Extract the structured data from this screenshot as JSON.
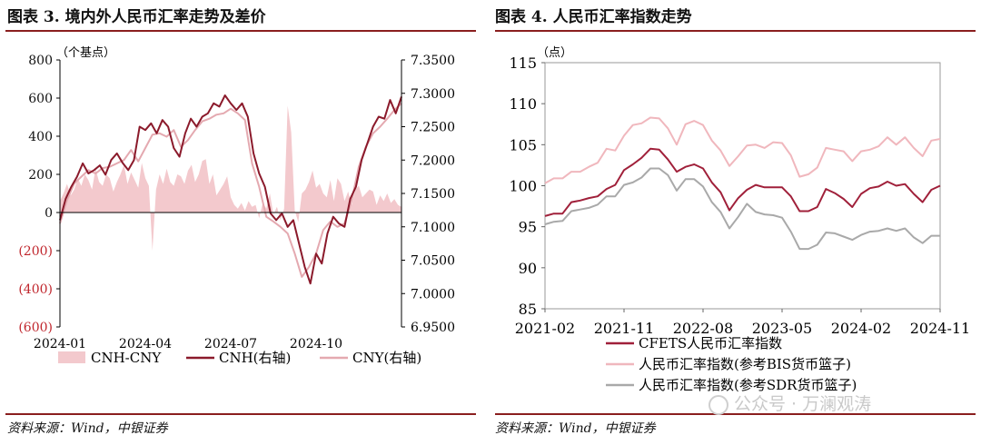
{
  "left": {
    "title": "图表 3.  境内外人民币汇率走势及差价",
    "source": "资料来源：Wind，中银证券",
    "unit_label": "（个基点）"
  },
  "right": {
    "title": "图表 4.  人民币汇率指数走势",
    "source": "资料来源：Wind，中银证券",
    "unit_label": "（点）"
  },
  "watermark": "公众号 · 万澜观涛",
  "colors": {
    "rule": "#8a1f1f",
    "cnh": "#8b1a2b",
    "cny": "#e4a9b0",
    "spread_fill": "#f3c9cd",
    "negative_tick": "#c0262d",
    "cfets": "#a0203a",
    "bis": "#f0b7bd",
    "sdr": "#a9a9a9"
  },
  "chart_data": [
    {
      "type": "area",
      "x_ticks": [
        "2024-01",
        "2024-04",
        "2024-07",
        "2024-10"
      ],
      "x_range": [
        0,
        48
      ],
      "left_axis": {
        "ylim": [
          -600,
          800
        ],
        "ticks": [
          800,
          600,
          400,
          200,
          0,
          -200,
          -400,
          -600
        ],
        "tick_labels": [
          "800",
          "600",
          "400",
          "200",
          "0",
          "(200)",
          "(400)",
          "(600)"
        ]
      },
      "right_axis": {
        "ylim": [
          6.95,
          7.35
        ],
        "ticks": [
          7.35,
          7.3,
          7.25,
          7.2,
          7.15,
          7.1,
          7.05,
          7.0,
          6.95
        ],
        "tick_labels": [
          "7.3500",
          "7.3000",
          "7.2500",
          "7.2000",
          "7.1500",
          "7.1000",
          "7.0500",
          "7.0000",
          "6.9500"
        ]
      },
      "legend_position": "bottom",
      "series": [
        {
          "name": "CNH-CNY",
          "axis": "left",
          "kind": "area",
          "x": [
            0,
            0.5,
            1,
            1.5,
            2,
            2.5,
            3,
            3.5,
            4,
            4.5,
            5,
            5.5,
            6,
            6.5,
            7,
            7.5,
            8,
            8.5,
            9,
            9.5,
            10,
            10.5,
            11,
            11.5,
            12,
            12.5,
            13,
            13.5,
            14,
            14.5,
            15,
            15.5,
            16,
            16.5,
            17,
            17.5,
            18,
            18.5,
            19,
            19.5,
            20,
            20.5,
            21,
            21.5,
            22,
            22.5,
            23,
            23.5,
            24,
            24.5,
            25,
            25.5,
            26,
            26.5,
            27,
            27.5,
            28,
            28.5,
            29,
            29.5,
            30,
            30.5,
            31,
            31.5,
            32,
            32.5,
            33,
            33.5,
            34,
            34.5,
            35,
            35.5,
            36,
            36.5,
            37,
            37.5,
            38,
            38.5,
            39,
            39.5,
            40,
            40.5,
            41,
            41.5,
            42,
            42.5,
            43,
            43.5,
            44,
            44.5,
            45,
            45.5,
            46,
            46.5,
            47,
            47.5,
            48
          ],
          "values": [
            60,
            100,
            150,
            90,
            120,
            180,
            140,
            200,
            170,
            120,
            230,
            160,
            140,
            200,
            180,
            110,
            160,
            200,
            250,
            150,
            210,
            170,
            130,
            260,
            180,
            140,
            -200,
            120,
            200,
            150,
            230,
            160,
            140,
            200,
            190,
            150,
            220,
            250,
            160,
            200,
            270,
            280,
            150,
            200,
            90,
            120,
            150,
            190,
            80,
            40,
            20,
            50,
            10,
            60,
            30,
            40,
            -30,
            50,
            20,
            100,
            -10,
            30,
            -40,
            20,
            560,
            420,
            10,
            -50,
            100,
            120,
            160,
            220,
            130,
            150,
            100,
            80,
            170,
            60,
            180,
            150,
            60,
            110,
            40,
            120,
            140,
            80,
            100,
            120,
            110,
            40,
            90,
            60,
            100,
            50,
            70,
            40,
            30
          ]
        },
        {
          "name": "CNH(右轴)",
          "axis": "right",
          "kind": "line",
          "x": [
            0,
            0.8,
            1.6,
            2.4,
            3.2,
            4,
            4.8,
            5.6,
            6.4,
            7.2,
            8,
            8.8,
            9.6,
            10.4,
            11.2,
            12,
            12.8,
            13.6,
            14.4,
            15.2,
            16,
            16.8,
            17.6,
            18.4,
            19.2,
            20,
            20.8,
            21.6,
            22.4,
            23.2,
            24,
            24.8,
            25.6,
            26.4,
            27.2,
            28,
            28.8,
            29.6,
            30.4,
            31.2,
            32,
            32.8,
            33.6,
            34.4,
            35.2,
            36,
            36.8,
            37.6,
            38.4,
            39.2,
            40,
            40.8,
            41.6,
            42.4,
            43.2,
            44,
            44.8,
            45.6,
            46.4,
            47.2,
            48
          ],
          "values": [
            7.11,
            7.142,
            7.16,
            7.175,
            7.195,
            7.18,
            7.185,
            7.192,
            7.178,
            7.2,
            7.21,
            7.196,
            7.185,
            7.2,
            7.25,
            7.245,
            7.255,
            7.24,
            7.26,
            7.25,
            7.218,
            7.205,
            7.24,
            7.262,
            7.25,
            7.265,
            7.27,
            7.285,
            7.28,
            7.297,
            7.285,
            7.275,
            7.285,
            7.265,
            7.21,
            7.18,
            7.16,
            7.12,
            7.11,
            7.12,
            7.1,
            7.11,
            7.075,
            7.04,
            7.015,
            7.06,
            7.045,
            7.09,
            7.115,
            7.105,
            7.1,
            7.142,
            7.16,
            7.2,
            7.225,
            7.25,
            7.265,
            7.262,
            7.29,
            7.27,
            7.295
          ]
        },
        {
          "name": "CNY(右轴)",
          "axis": "right",
          "kind": "line",
          "x": [
            0,
            1,
            2,
            3,
            4,
            5,
            6,
            7,
            8,
            9,
            10,
            11,
            12,
            13,
            14,
            15,
            16,
            17,
            18,
            19,
            20,
            21,
            22,
            23,
            24,
            25,
            26,
            27,
            28,
            29,
            30,
            31,
            32,
            33,
            34,
            35,
            36,
            37,
            38,
            39,
            40,
            41,
            42,
            43,
            44,
            45,
            46,
            47,
            48
          ],
          "values": [
            7.105,
            7.14,
            7.165,
            7.175,
            7.185,
            7.18,
            7.188,
            7.19,
            7.195,
            7.2,
            7.215,
            7.198,
            7.218,
            7.238,
            7.24,
            7.235,
            7.245,
            7.22,
            7.23,
            7.245,
            7.258,
            7.262,
            7.268,
            7.27,
            7.277,
            7.27,
            7.26,
            7.195,
            7.16,
            7.115,
            7.108,
            7.1,
            7.09,
            7.06,
            7.025,
            7.04,
            7.06,
            7.095,
            7.108,
            7.1,
            7.105,
            7.14,
            7.19,
            7.22,
            7.24,
            7.25,
            7.262,
            7.275,
            7.285
          ]
        }
      ]
    },
    {
      "type": "line",
      "x_ticks": [
        "2021-02",
        "2021-11",
        "2022-08",
        "2023-05",
        "2024-02",
        "2024-11"
      ],
      "x_range": [
        0,
        45
      ],
      "ylim": [
        85,
        115
      ],
      "y_ticks": [
        115,
        110,
        105,
        100,
        95,
        90,
        85
      ],
      "legend_position": "bottom",
      "series": [
        {
          "name": "CFETS人民币汇率指数",
          "values": [
            96.3,
            96.6,
            96.6,
            98.0,
            98.2,
            98.5,
            98.7,
            99.6,
            100.1,
            101.9,
            102.6,
            103.4,
            104.5,
            104.4,
            103.2,
            101.7,
            102.3,
            102.6,
            102.1,
            100.4,
            99.2,
            97.0,
            98.5,
            99.5,
            100.1,
            99.8,
            99.8,
            99.8,
            98.7,
            96.9,
            96.9,
            97.4,
            99.6,
            99.1,
            98.4,
            97.4,
            99.0,
            99.7,
            99.9,
            100.5,
            100.0,
            100.2,
            99.0,
            98.0,
            99.5,
            100.0
          ]
        },
        {
          "name": "人民币汇率指数(参考BIS货币篮子)",
          "values": [
            100.3,
            100.9,
            100.9,
            101.7,
            101.7,
            102.3,
            102.8,
            104.5,
            104.3,
            106.1,
            107.4,
            107.6,
            108.3,
            108.2,
            107.0,
            105.0,
            107.5,
            107.9,
            107.4,
            105.5,
            104.3,
            102.4,
            103.6,
            104.9,
            105.0,
            104.6,
            105.3,
            105.2,
            103.7,
            101.1,
            101.4,
            102.2,
            104.6,
            104.4,
            104.2,
            103.0,
            104.2,
            104.4,
            104.8,
            105.9,
            105.0,
            105.9,
            104.6,
            103.6,
            105.5,
            105.7
          ]
        },
        {
          "name": "人民币汇率指数(参考SDR货币篮子)",
          "values": [
            95.3,
            95.6,
            95.7,
            96.9,
            97.1,
            97.3,
            97.7,
            98.7,
            98.7,
            100.1,
            100.4,
            101.0,
            102.1,
            102.1,
            101.3,
            99.4,
            100.8,
            100.8,
            99.9,
            98.0,
            96.8,
            94.8,
            96.2,
            97.8,
            96.8,
            96.5,
            96.4,
            96.1,
            94.4,
            92.3,
            92.3,
            92.8,
            94.3,
            94.2,
            93.8,
            93.4,
            94.0,
            94.4,
            94.5,
            94.8,
            94.5,
            94.8,
            93.7,
            93.0,
            93.9,
            93.9
          ]
        }
      ]
    }
  ]
}
